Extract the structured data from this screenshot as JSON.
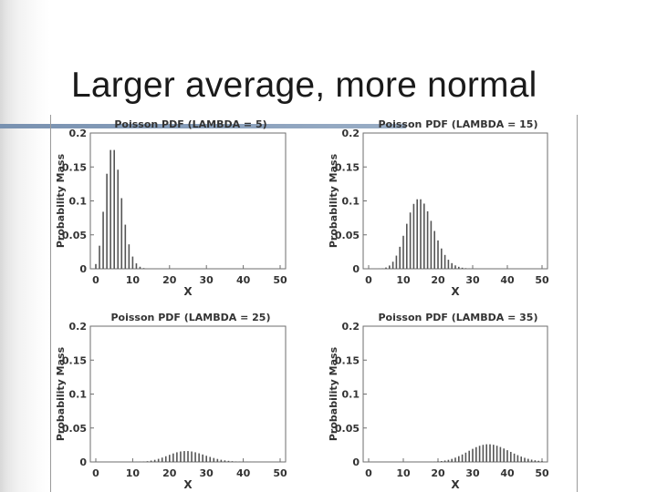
{
  "slide": {
    "title": "Larger average, more normal"
  },
  "chart_data": [
    {
      "type": "bar",
      "title": "Poisson PDF (LAMBDA = 5)",
      "lambda": 5,
      "xlabel": "X",
      "ylabel": "Probability Mass",
      "xlim": [
        0,
        50
      ],
      "ylim": [
        0,
        0.2
      ],
      "xticks": [
        0,
        10,
        20,
        30,
        40,
        50
      ],
      "yticks": [
        0,
        0.05,
        0.1,
        0.15,
        0.2
      ],
      "grid": false,
      "x": [
        0,
        1,
        2,
        3,
        4,
        5,
        6,
        7,
        8,
        9,
        10,
        11,
        12,
        13,
        14,
        15,
        16,
        17,
        18,
        19,
        20,
        21,
        22,
        23,
        24,
        25,
        26,
        27,
        28,
        29,
        30,
        31,
        32,
        33,
        34,
        35,
        36,
        37,
        38,
        39,
        40,
        41,
        42,
        43,
        44,
        45,
        46,
        47,
        48,
        49,
        50
      ],
      "values": [
        0.007,
        0.034,
        0.084,
        0.14,
        0.175,
        0.175,
        0.146,
        0.104,
        0.065,
        0.036,
        0.018,
        0.008,
        0.003,
        0.001,
        0,
        0,
        0,
        0,
        0,
        0,
        0,
        0,
        0,
        0,
        0,
        0,
        0,
        0,
        0,
        0,
        0,
        0,
        0,
        0,
        0,
        0,
        0,
        0,
        0,
        0,
        0,
        0,
        0,
        0,
        0,
        0,
        0,
        0,
        0,
        0,
        0
      ]
    },
    {
      "type": "bar",
      "title": "Poisson PDF (LAMBDA = 15)",
      "lambda": 15,
      "xlabel": "X",
      "ylabel": "Probability Mass",
      "xlim": [
        0,
        50
      ],
      "ylim": [
        0,
        0.2
      ],
      "xticks": [
        0,
        10,
        20,
        30,
        40,
        50
      ],
      "yticks": [
        0,
        0.05,
        0.1,
        0.15,
        0.2
      ],
      "grid": false,
      "x": [
        0,
        1,
        2,
        3,
        4,
        5,
        6,
        7,
        8,
        9,
        10,
        11,
        12,
        13,
        14,
        15,
        16,
        17,
        18,
        19,
        20,
        21,
        22,
        23,
        24,
        25,
        26,
        27,
        28,
        29,
        30,
        31,
        32,
        33,
        34,
        35,
        36,
        37,
        38,
        39,
        40,
        41,
        42,
        43,
        44,
        45,
        46,
        47,
        48,
        49,
        50
      ],
      "values": [
        0,
        0,
        0,
        0.0002,
        0.0006,
        0.0019,
        0.0048,
        0.0104,
        0.0194,
        0.0324,
        0.0486,
        0.0663,
        0.0829,
        0.0956,
        0.1024,
        0.1024,
        0.096,
        0.0847,
        0.0706,
        0.0557,
        0.0418,
        0.0299,
        0.0204,
        0.0133,
        0.0083,
        0.005,
        0.0029,
        0.0016,
        0.0009,
        0.0004,
        0.0002,
        0.0001,
        0,
        0,
        0,
        0,
        0,
        0,
        0,
        0,
        0,
        0,
        0,
        0,
        0,
        0,
        0,
        0,
        0,
        0,
        0
      ]
    },
    {
      "type": "bar",
      "title": "Poisson PDF (LAMBDA = 25)",
      "lambda": 25,
      "xlabel": "X",
      "ylabel": "Probability Mass",
      "xlim": [
        0,
        50
      ],
      "ylim": [
        0,
        0.2
      ],
      "xticks": [
        0,
        10,
        20,
        30,
        40,
        50
      ],
      "yticks": [
        0,
        0.05,
        0.1,
        0.15,
        0.2
      ],
      "grid": false,
      "x": [
        0,
        1,
        2,
        3,
        4,
        5,
        6,
        7,
        8,
        9,
        10,
        11,
        12,
        13,
        14,
        15,
        16,
        17,
        18,
        19,
        20,
        21,
        22,
        23,
        24,
        25,
        26,
        27,
        28,
        29,
        30,
        31,
        32,
        33,
        34,
        35,
        36,
        37,
        38,
        39,
        40,
        41,
        42,
        43,
        44,
        45,
        46,
        47,
        48,
        49,
        50
      ],
      "values": [
        0,
        0,
        0,
        0,
        0,
        0,
        0,
        0,
        0,
        0,
        0,
        0.0001,
        0.0003,
        0.0006,
        0.0011,
        0.002,
        0.0031,
        0.0046,
        0.0064,
        0.0084,
        0.0105,
        0.0125,
        0.0142,
        0.0154,
        0.016,
        0.016,
        0.0154,
        0.0142,
        0.0127,
        0.011,
        0.0091,
        0.0074,
        0.0058,
        0.0044,
        0.0032,
        0.0023,
        0.0016,
        0.0011,
        0.0007,
        0.0005,
        0.0003,
        0.0002,
        0.0001,
        0.0001,
        0,
        0,
        0,
        0,
        0,
        0,
        0
      ]
    },
    {
      "type": "bar",
      "title": "Poisson PDF (LAMBDA = 35)",
      "lambda": 35,
      "xlabel": "X",
      "ylabel": "Probability Mass",
      "xlim": [
        0,
        50
      ],
      "ylim": [
        0,
        0.2
      ],
      "xticks": [
        0,
        10,
        20,
        30,
        40,
        50
      ],
      "yticks": [
        0,
        0.05,
        0.1,
        0.15,
        0.2
      ],
      "grid": false,
      "x": [
        0,
        1,
        2,
        3,
        4,
        5,
        6,
        7,
        8,
        9,
        10,
        11,
        12,
        13,
        14,
        15,
        16,
        17,
        18,
        19,
        20,
        21,
        22,
        23,
        24,
        25,
        26,
        27,
        28,
        29,
        30,
        31,
        32,
        33,
        34,
        35,
        36,
        37,
        38,
        39,
        40,
        41,
        42,
        43,
        44,
        45,
        46,
        47,
        48,
        49,
        50
      ],
      "values": [
        0,
        0,
        0,
        0,
        0,
        0,
        0,
        0,
        0,
        0,
        0,
        0,
        0,
        0,
        0,
        0,
        0,
        0,
        0.0002,
        0.0004,
        0.0008,
        0.0013,
        0.0021,
        0.0031,
        0.0045,
        0.0063,
        0.0085,
        0.011,
        0.0137,
        0.0165,
        0.0193,
        0.0218,
        0.0238,
        0.0252,
        0.026,
        0.026,
        0.0253,
        0.0239,
        0.022,
        0.0198,
        0.0173,
        0.0148,
        0.0123,
        0.01,
        0.0079,
        0.0061,
        0.0046,
        0.0034,
        0.0024,
        0.0017,
        0.0012
      ]
    }
  ]
}
